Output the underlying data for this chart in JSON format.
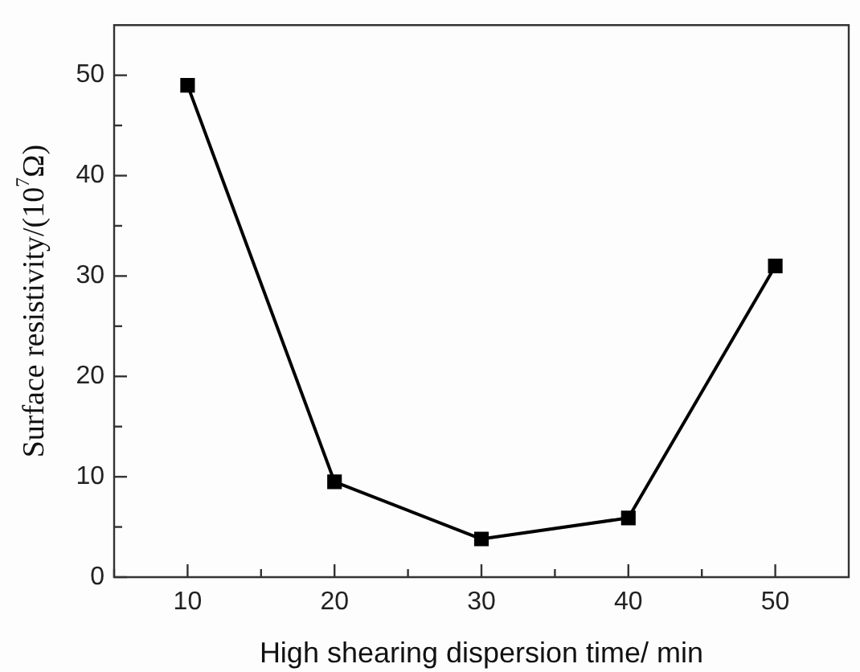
{
  "chart_data": {
    "type": "line",
    "xlabel": "High shearing dispersion time/ min",
    "ylabel": "Surface resistivity/(10$^{7}$Ω)",
    "x": [
      10,
      20,
      30,
      40,
      50
    ],
    "series": [
      {
        "color": "#000000",
        "values": [
          49,
          9.5,
          3.8,
          5.9,
          31
        ]
      }
    ],
    "xlim": [
      5,
      55
    ],
    "xticks": [
      {
        "value": 5,
        "label": null
      },
      10,
      {
        "value": 15,
        "label": null
      },
      20,
      {
        "value": 25,
        "label": null
      },
      30,
      {
        "value": 35,
        "label": null
      },
      40,
      {
        "value": 45,
        "label": null
      },
      50
    ],
    "ylim": [
      0,
      55
    ],
    "yticks": [
      0,
      {
        "value": 5,
        "label": null
      },
      10,
      {
        "value": 15,
        "label": null
      },
      20,
      {
        "value": 25,
        "label": null
      },
      30,
      {
        "value": 35,
        "label": null
      },
      40,
      {
        "value": 45,
        "label": null
      },
      50
    ],
    "marker": "square",
    "line_style": "solid",
    "grid": false,
    "legend": false
  }
}
